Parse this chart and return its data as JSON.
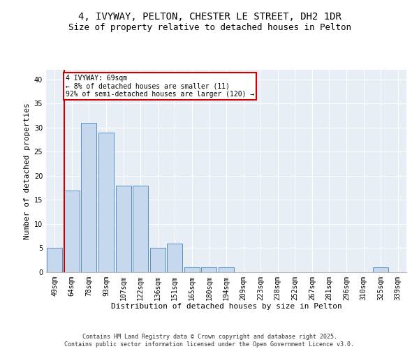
{
  "title1": "4, IVYWAY, PELTON, CHESTER LE STREET, DH2 1DR",
  "title2": "Size of property relative to detached houses in Pelton",
  "xlabel": "Distribution of detached houses by size in Pelton",
  "ylabel": "Number of detached properties",
  "categories": [
    "49sqm",
    "64sqm",
    "78sqm",
    "93sqm",
    "107sqm",
    "122sqm",
    "136sqm",
    "151sqm",
    "165sqm",
    "180sqm",
    "194sqm",
    "209sqm",
    "223sqm",
    "238sqm",
    "252sqm",
    "267sqm",
    "281sqm",
    "296sqm",
    "310sqm",
    "325sqm",
    "339sqm"
  ],
  "values": [
    5,
    17,
    31,
    29,
    18,
    18,
    5,
    6,
    1,
    1,
    1,
    0,
    0,
    0,
    0,
    0,
    0,
    0,
    0,
    1,
    0
  ],
  "bar_color": "#c5d8ed",
  "bar_edge_color": "#5a8fc0",
  "annotation_line1": "4 IVYWAY: 69sqm",
  "annotation_line2": "← 8% of detached houses are smaller (11)",
  "annotation_line3": "92% of semi-detached houses are larger (120) →",
  "vline_color": "#cc0000",
  "box_color": "#cc0000",
  "ylim": [
    0,
    42
  ],
  "yticks": [
    0,
    5,
    10,
    15,
    20,
    25,
    30,
    35,
    40
  ],
  "background_color": "#e8eef5",
  "footer": "Contains HM Land Registry data © Crown copyright and database right 2025.\nContains public sector information licensed under the Open Government Licence v3.0.",
  "title_fontsize": 10,
  "subtitle_fontsize": 9,
  "tick_fontsize": 7,
  "xlabel_fontsize": 8,
  "ylabel_fontsize": 8,
  "footer_fontsize": 6,
  "annotation_fontsize": 7
}
